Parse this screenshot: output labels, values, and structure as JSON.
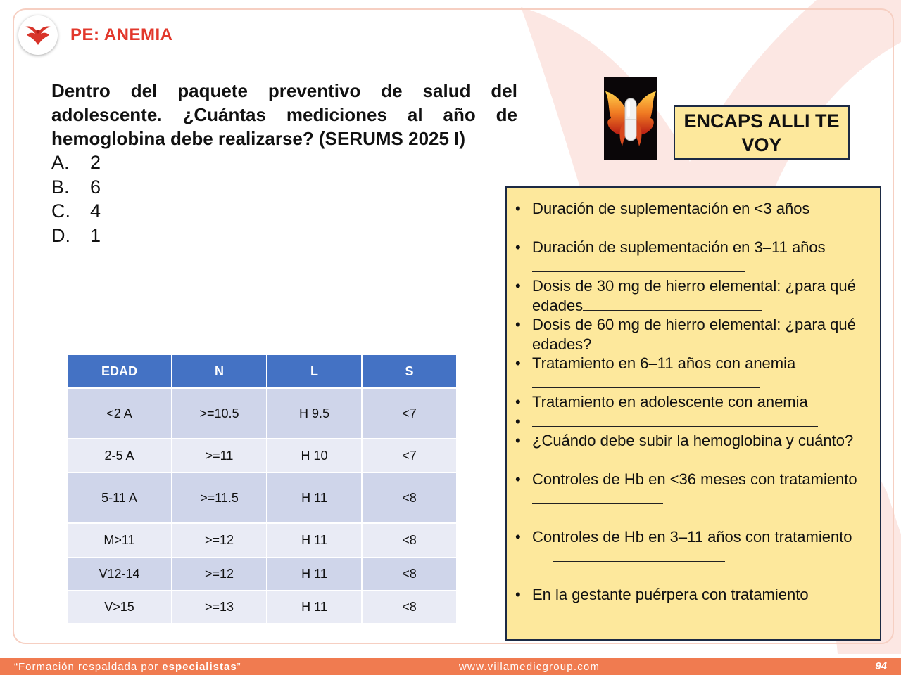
{
  "header": {
    "title": "PE: ANEMIA"
  },
  "question": {
    "text": "Dentro del paquete preventivo de salud del adolescente. ¿Cuántas mediciones al año de hemoglobina debe realizarse? (SERUMS 2025 I)",
    "options": [
      {
        "letter": "A.",
        "value": "2"
      },
      {
        "letter": "B.",
        "value": "6"
      },
      {
        "letter": "C.",
        "value": "4"
      },
      {
        "letter": "D.",
        "value": "1"
      }
    ]
  },
  "mnemonic": {
    "line1": "ENCAPS ALLI TE",
    "line2": "VOY"
  },
  "review_questions": [
    "Duración de suplementación en <3 años",
    "Duración de suplementación en 3–11 años",
    "Dosis de 30 mg de hierro elemental: ¿para qué edades",
    "Dosis de 60 mg de hierro elemental: ¿para qué edades?",
    "Tratamiento en 6–11 años con anemia",
    "Tratamiento en adolescente con anemia",
    "",
    "¿Cuándo debe subir la hemoglobina y cuánto?",
    "Controles de Hb en <36 meses con tratamiento",
    "Controles de Hb en 3–11 años con tratamiento",
    "En la gestante puérpera con tratamiento"
  ],
  "hb_table": {
    "headers": [
      "EDAD",
      "N",
      "L",
      "S"
    ],
    "rows": [
      [
        "<2 A",
        ">=10.5",
        "H 9.5",
        "<7"
      ],
      [
        "2-5 A",
        ">=11",
        "H 10",
        "<7"
      ],
      [
        "5-11 A",
        ">=11.5",
        "H 11",
        "<8"
      ],
      [
        "M>11",
        ">=12",
        "H 11",
        "<8"
      ],
      [
        "V12-14",
        ">=12",
        "H 11",
        "<8"
      ],
      [
        "V>15",
        ">=13",
        "H 11",
        "<8"
      ]
    ]
  },
  "footer": {
    "tagline_prefix": "“Formación respaldada por ",
    "tagline_bold": "especialistas",
    "tagline_suffix": "”",
    "website": "www.villamedicgroup.com",
    "page_number": "94"
  },
  "colors": {
    "accent": "#e2382c",
    "table_header": "#4472c4",
    "box_fill": "#fde89c",
    "footer_bar": "#f07b50"
  }
}
